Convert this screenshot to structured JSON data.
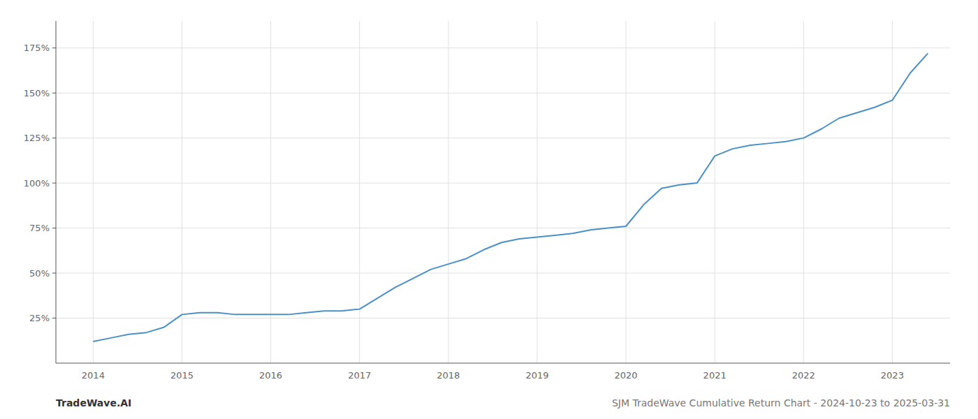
{
  "chart_data": {
    "type": "line",
    "title": "SJM TradeWave Cumulative Return Chart - 2024-10-23 to 2025-03-31",
    "annotations": [
      "TradeWave.AI"
    ],
    "color": "#4a90c4",
    "grid": true,
    "x": [
      2014.0,
      2014.2,
      2014.4,
      2014.6,
      2014.8,
      2015.0,
      2015.2,
      2015.4,
      2015.6,
      2015.8,
      2016.0,
      2016.2,
      2016.4,
      2016.6,
      2016.8,
      2017.0,
      2017.2,
      2017.4,
      2017.6,
      2017.8,
      2018.0,
      2018.2,
      2018.4,
      2018.6,
      2018.8,
      2019.0,
      2019.2,
      2019.4,
      2019.6,
      2019.8,
      2020.0,
      2020.2,
      2020.4,
      2020.6,
      2020.8,
      2021.0,
      2021.2,
      2021.4,
      2021.6,
      2021.8,
      2022.0,
      2022.2,
      2022.4,
      2022.6,
      2022.8,
      2023.0,
      2023.2,
      2023.4
    ],
    "values": [
      12,
      14,
      16,
      17,
      20,
      27,
      28,
      28,
      27,
      27,
      27,
      27,
      28,
      29,
      29,
      30,
      36,
      42,
      47,
      52,
      55,
      58,
      63,
      67,
      69,
      70,
      71,
      72,
      74,
      75,
      76,
      88,
      97,
      99,
      100,
      115,
      119,
      121,
      122,
      123,
      125,
      130,
      136,
      139,
      142,
      146,
      161,
      172
    ],
    "xlim": [
      2013.58,
      2023.65
    ],
    "ylim": [
      0,
      190
    ],
    "xticks": [
      2014,
      2015,
      2016,
      2017,
      2018,
      2019,
      2020,
      2021,
      2022,
      2023
    ],
    "yticks": [
      {
        "value": 25,
        "label": "25%"
      },
      {
        "value": 50,
        "label": "50%"
      },
      {
        "value": 75,
        "label": "75%"
      },
      {
        "value": 100,
        "label": "100%"
      },
      {
        "value": 125,
        "label": "125%"
      },
      {
        "value": 150,
        "label": "150%"
      },
      {
        "value": 175,
        "label": "175%"
      }
    ]
  }
}
